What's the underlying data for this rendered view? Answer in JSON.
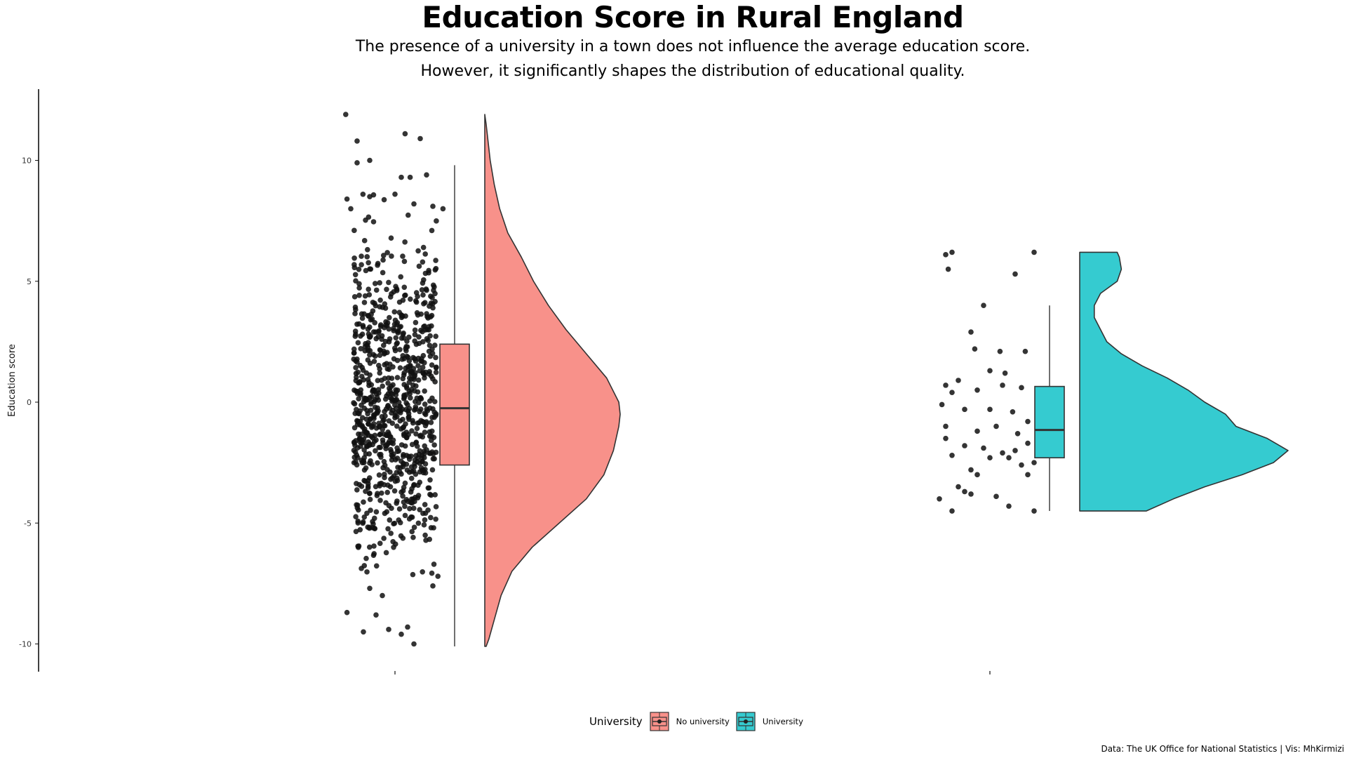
{
  "title": "Education Score in Rural England",
  "subtitle_lines": [
    "The presence of a university in a town does not influence the average education score.",
    "However, it significantly shapes the distribution of educational quality."
  ],
  "caption": "Data:  The UK Office for National Statistics | Vis: MhKirmizi",
  "chart_data": {
    "type": "raincloud",
    "ylabel": "Education score",
    "xlabel": "",
    "ylim": [
      -11.2,
      12.9
    ],
    "yticks": [
      -10,
      -5,
      0,
      5,
      10
    ],
    "legend": {
      "title": "University",
      "position": "bottom",
      "entries": [
        "No university",
        "University"
      ]
    },
    "groups": [
      {
        "name": "No university",
        "color": "#F8918A",
        "n_points_approx": 900,
        "points_min": -10.1,
        "points_max": 11.9,
        "box": {
          "whisker_low": -10.1,
          "q1": -2.6,
          "median": -0.25,
          "q3": 2.4,
          "whisker_high": 9.8
        },
        "violin": {
          "y": [
            -10.1,
            -9.8,
            -9,
            -8,
            -7,
            -6,
            -5,
            -4,
            -3,
            -2,
            -1,
            -0.5,
            0,
            1,
            2,
            3,
            4,
            5,
            6,
            7,
            8,
            9,
            10,
            11,
            11.5,
            11.9
          ],
          "density": [
            0.01,
            0.03,
            0.07,
            0.12,
            0.2,
            0.35,
            0.55,
            0.75,
            0.88,
            0.95,
            0.99,
            1.0,
            0.99,
            0.9,
            0.75,
            0.6,
            0.47,
            0.36,
            0.27,
            0.17,
            0.11,
            0.07,
            0.04,
            0.02,
            0.01,
            0.0
          ]
        },
        "points": [
          [
            -0.39,
            11.9
          ],
          [
            0.08,
            11.1
          ],
          [
            0.2,
            10.9
          ],
          [
            -0.3,
            10.8
          ],
          [
            -0.2,
            10.0
          ],
          [
            -0.3,
            9.9
          ],
          [
            0.25,
            9.4
          ],
          [
            0.12,
            9.3
          ],
          [
            0.05,
            9.3
          ],
          [
            -0.38,
            8.4
          ],
          [
            0.0,
            8.6
          ],
          [
            -0.2,
            8.5
          ],
          [
            0.3,
            8.1
          ],
          [
            0.15,
            8.2
          ],
          [
            -0.35,
            8.0
          ],
          [
            0.38,
            8.0
          ],
          [
            -0.15,
            -8.8
          ],
          [
            -0.1,
            -8.0
          ],
          [
            -0.2,
            -7.7
          ],
          [
            0.3,
            -7.6
          ],
          [
            0.34,
            -7.2
          ],
          [
            -0.38,
            -8.7
          ],
          [
            -0.05,
            -9.4
          ],
          [
            0.1,
            -9.3
          ],
          [
            0.05,
            -9.6
          ],
          [
            0.15,
            -10.0
          ],
          [
            -0.25,
            -9.5
          ]
        ]
      },
      {
        "name": "University",
        "color": "#35CBD0",
        "n_points_approx": 70,
        "points_min": -4.5,
        "points_max": 6.2,
        "box": {
          "whisker_low": -4.5,
          "q1": -2.3,
          "median": -1.15,
          "q3": 0.65,
          "whisker_high": 4.0
        },
        "violin": {
          "y": [
            -4.5,
            -4.0,
            -3.5,
            -3.0,
            -2.5,
            -2.0,
            -1.5,
            -1.0,
            -0.5,
            0.0,
            0.5,
            1.0,
            1.5,
            2.0,
            2.5,
            3.0,
            3.5,
            4.0,
            4.5,
            5.0,
            5.5,
            6.0,
            6.2
          ],
          "density": [
            0.32,
            0.45,
            0.6,
            0.78,
            0.93,
            1.0,
            0.9,
            0.75,
            0.7,
            0.6,
            0.52,
            0.42,
            0.3,
            0.2,
            0.13,
            0.1,
            0.07,
            0.07,
            0.1,
            0.18,
            0.2,
            0.19,
            0.18
          ]
        },
        "points": [
          [
            -0.35,
            6.1
          ],
          [
            -0.3,
            6.2
          ],
          [
            0.35,
            6.2
          ],
          [
            -0.33,
            5.5
          ],
          [
            0.2,
            5.3
          ],
          [
            -0.05,
            4.0
          ],
          [
            -0.15,
            2.9
          ],
          [
            -0.12,
            2.2
          ],
          [
            0.08,
            2.1
          ],
          [
            0.28,
            2.1
          ],
          [
            0.0,
            1.3
          ],
          [
            0.12,
            1.2
          ],
          [
            -0.35,
            0.7
          ],
          [
            -0.3,
            0.4
          ],
          [
            -0.25,
            0.9
          ],
          [
            -0.1,
            0.5
          ],
          [
            0.1,
            0.7
          ],
          [
            0.25,
            0.6
          ],
          [
            -0.38,
            -0.1
          ],
          [
            -0.2,
            -0.3
          ],
          [
            0.0,
            -0.3
          ],
          [
            0.18,
            -0.4
          ],
          [
            0.3,
            -0.8
          ],
          [
            -0.35,
            -1.0
          ],
          [
            -0.1,
            -1.2
          ],
          [
            0.05,
            -1.0
          ],
          [
            0.22,
            -1.3
          ],
          [
            -0.35,
            -1.5
          ],
          [
            -0.2,
            -1.8
          ],
          [
            0.3,
            -1.7
          ],
          [
            -0.05,
            -1.9
          ],
          [
            0.1,
            -2.1
          ],
          [
            0.2,
            -2.0
          ],
          [
            -0.3,
            -2.2
          ],
          [
            0.0,
            -2.3
          ],
          [
            0.15,
            -2.3
          ],
          [
            -0.15,
            -2.8
          ],
          [
            0.25,
            -2.6
          ],
          [
            0.35,
            -2.5
          ],
          [
            -0.1,
            -3.0
          ],
          [
            0.3,
            -3.0
          ],
          [
            -0.25,
            -3.5
          ],
          [
            -0.2,
            -3.7
          ],
          [
            -0.15,
            -3.8
          ],
          [
            0.05,
            -3.9
          ],
          [
            -0.4,
            -4.0
          ],
          [
            -0.3,
            -4.5
          ],
          [
            0.15,
            -4.3
          ],
          [
            0.35,
            -4.5
          ]
        ]
      }
    ]
  }
}
